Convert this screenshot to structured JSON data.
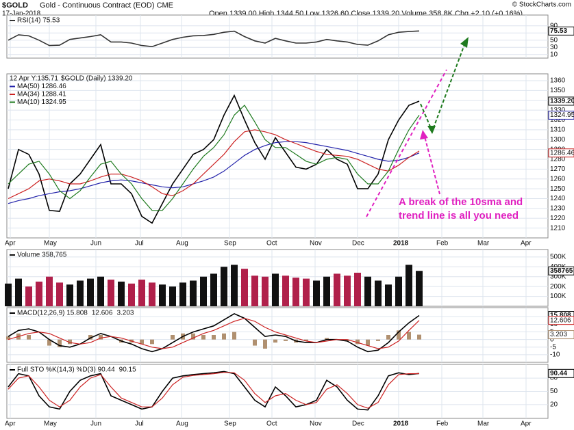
{
  "header": {
    "symbol": "$GOLD",
    "name": "Gold - Continuous Contract (EOD) CME",
    "date": "17-Jan-2018",
    "quote": "Open 1339.00 High 1344.50 Low 1326.60 Close 1339.20 Volume 358.8K Chg +2.10 (+0.16%)",
    "credit": "© StockCharts.com"
  },
  "annotations": [
    "A break of the 10sma and",
    "trend line is all you need"
  ],
  "x_axis": {
    "labels": [
      "Apr",
      "May",
      "Jun",
      "Jul",
      "Aug",
      "Sep",
      "Oct",
      "Nov",
      "Dec",
      "2018",
      "Feb",
      "Mar",
      "Apr"
    ]
  },
  "chart_data": [
    {
      "type": "line",
      "ylim": [
        0,
        120
      ],
      "yticks": [
        10,
        30,
        50,
        70,
        90
      ],
      "grid": true,
      "series": [
        {
          "name": "RSI(14) 75.53",
          "color": "#333333",
          "values": [
            50,
            65,
            62,
            50,
            35,
            36,
            52,
            56,
            60,
            65,
            45,
            45,
            42,
            35,
            32,
            42,
            52,
            58,
            62,
            63,
            66,
            72,
            75,
            60,
            48,
            42,
            55,
            48,
            42,
            42,
            45,
            52,
            48,
            45,
            38,
            36,
            48,
            65,
            72,
            74,
            75.53
          ]
        }
      ],
      "tags": [
        {
          "value": 75.53,
          "label": "75.53"
        }
      ]
    },
    {
      "type": "line",
      "ylim": [
        1200,
        1367
      ],
      "yticks": [
        1210,
        1220,
        1230,
        1240,
        1250,
        1260,
        1270,
        1280,
        1290,
        1300,
        1310,
        1320,
        1330,
        1340,
        1350,
        1360
      ],
      "grid": true,
      "tooltip": "12 Apr Y:135.71",
      "series": [
        {
          "name": "$GOLD (Daily) 1339.20",
          "color": "#000000",
          "values": [
            1250,
            1290,
            1285,
            1265,
            1228,
            1227,
            1255,
            1265,
            1280,
            1295,
            1255,
            1255,
            1245,
            1222,
            1215,
            1235,
            1255,
            1270,
            1285,
            1290,
            1300,
            1325,
            1345,
            1320,
            1297,
            1280,
            1302,
            1287,
            1272,
            1270,
            1275,
            1290,
            1280,
            1275,
            1250,
            1250,
            1265,
            1300,
            1320,
            1335,
            1339.2
          ]
        },
        {
          "name": "MA(50) 1286.46",
          "color": "#2222aa",
          "values": [
            1235,
            1238,
            1240,
            1243,
            1245,
            1247,
            1248,
            1250,
            1253,
            1256,
            1258,
            1259,
            1258,
            1256,
            1254,
            1252,
            1251,
            1252,
            1255,
            1258,
            1262,
            1268,
            1276,
            1284,
            1290,
            1294,
            1297,
            1298,
            1298,
            1297,
            1295,
            1293,
            1291,
            1289,
            1286,
            1283,
            1280,
            1278,
            1279,
            1282,
            1286.46
          ]
        },
        {
          "name": "MA(34) 1288.41",
          "color": "#cc2222",
          "values": [
            1240,
            1245,
            1250,
            1258,
            1260,
            1258,
            1255,
            1255,
            1258,
            1262,
            1265,
            1265,
            1262,
            1258,
            1252,
            1245,
            1243,
            1248,
            1255,
            1265,
            1275,
            1285,
            1298,
            1308,
            1310,
            1308,
            1305,
            1300,
            1296,
            1292,
            1288,
            1285,
            1284,
            1283,
            1280,
            1275,
            1270,
            1268,
            1274,
            1282,
            1288.41
          ]
        },
        {
          "name": "MA(10) 1324.95",
          "color": "#1e7a1e",
          "values": [
            1255,
            1265,
            1275,
            1278,
            1265,
            1248,
            1240,
            1248,
            1262,
            1275,
            1278,
            1265,
            1255,
            1240,
            1228,
            1228,
            1240,
            1255,
            1270,
            1283,
            1292,
            1305,
            1325,
            1335,
            1318,
            1300,
            1292,
            1292,
            1285,
            1278,
            1275,
            1280,
            1282,
            1280,
            1265,
            1255,
            1255,
            1268,
            1290,
            1310,
            1324.95
          ]
        }
      ],
      "tags": [
        {
          "value": 1339.2,
          "label": "1339.20"
        },
        {
          "value": 1324.95,
          "label": "1324.95"
        },
        {
          "value": 1286.46,
          "label": "1286.46"
        }
      ]
    },
    {
      "type": "bar",
      "ylim": [
        0,
        575000
      ],
      "yticks": [
        {
          "value": 100000,
          "label": "100K"
        },
        {
          "value": 200000,
          "label": "200K"
        },
        {
          "value": 300000,
          "label": "300K"
        },
        {
          "value": 400000,
          "label": "400K"
        },
        {
          "value": 500000,
          "label": "500K"
        }
      ],
      "grid": true,
      "up_color": "#111111",
      "down_color": "#b0204a",
      "series": [
        {
          "name": "Volume 358,765",
          "color": "#111111",
          "values": [
            230000,
            280000,
            200000,
            250000,
            300000,
            240000,
            220000,
            260000,
            280000,
            300000,
            270000,
            250000,
            230000,
            270000,
            240000,
            220000,
            200000,
            240000,
            260000,
            300000,
            330000,
            400000,
            420000,
            380000,
            310000,
            300000,
            330000,
            310000,
            290000,
            280000,
            260000,
            300000,
            330000,
            310000,
            340000,
            300000,
            260000,
            220000,
            300000,
            420000,
            358765
          ]
        }
      ],
      "tags": [
        {
          "value": 358765,
          "label": "358765"
        }
      ]
    },
    {
      "type": "line",
      "ylim": [
        -15,
        21
      ],
      "yticks": [
        -10,
        -5,
        0,
        5,
        10,
        15
      ],
      "grid": true,
      "series": [
        {
          "name": "MACD(12,26,9) 15.808",
          "color": "#000000",
          "values": [
            2,
            6,
            7,
            5,
            0,
            -4,
            -5,
            -3,
            1,
            4,
            2,
            -1,
            -3,
            -6,
            -8,
            -6,
            -2,
            2,
            5,
            7,
            9,
            13,
            17,
            14,
            8,
            2,
            3,
            2,
            -1,
            -2,
            -2,
            0,
            0,
            -1,
            -5,
            -8,
            -7,
            -2,
            5,
            11,
            15.808
          ]
        },
        {
          "name": "12.606",
          "color": "#cc2222",
          "values": [
            0,
            2,
            4,
            5,
            4,
            1,
            -2,
            -3,
            -2,
            1,
            2,
            1,
            -1,
            -3,
            -5,
            -6,
            -5,
            -2,
            1,
            4,
            6,
            9,
            12,
            14,
            12,
            8,
            5,
            3,
            1,
            -1,
            -2,
            -1,
            0,
            0,
            -2,
            -4,
            -6,
            -5,
            -1,
            6,
            12.606
          ]
        }
      ],
      "histogram": {
        "name": "3.203",
        "color": "#b09070",
        "values": [
          2,
          4,
          3,
          0,
          -4,
          -5,
          -3,
          0,
          3,
          3,
          0,
          -2,
          -2,
          -3,
          -3,
          0,
          3,
          4,
          4,
          3,
          3,
          4,
          5,
          0,
          -4,
          -6,
          -2,
          -1,
          -2,
          -1,
          0,
          1,
          0,
          -1,
          -3,
          -4,
          -1,
          3,
          6,
          5,
          3.203
        ]
      },
      "tags": [
        {
          "value": 15.808,
          "label": "15.808"
        },
        {
          "value": 12.606,
          "label": "12.606"
        },
        {
          "value": 3.203,
          "label": "3.203"
        }
      ]
    },
    {
      "type": "line",
      "ylim": [
        -11,
        111
      ],
      "yticks": [
        20,
        50,
        80
      ],
      "grid": true,
      "series": [
        {
          "name": "Full STO %K(14,3) %D(3) 90.44",
          "color": "#000000",
          "values": [
            60,
            90,
            85,
            40,
            15,
            10,
            50,
            75,
            85,
            90,
            40,
            30,
            20,
            10,
            15,
            50,
            80,
            85,
            88,
            90,
            92,
            95,
            90,
            60,
            30,
            15,
            60,
            40,
            15,
            20,
            30,
            75,
            60,
            30,
            10,
            8,
            40,
            85,
            92,
            88,
            90.44
          ]
        },
        {
          "name": "90.15",
          "color": "#cc2222",
          "values": [
            55,
            80,
            85,
            60,
            30,
            15,
            30,
            60,
            80,
            88,
            60,
            35,
            25,
            15,
            15,
            35,
            65,
            82,
            86,
            88,
            90,
            93,
            92,
            75,
            45,
            25,
            40,
            45,
            30,
            20,
            25,
            55,
            65,
            45,
            20,
            12,
            25,
            65,
            88,
            90,
            90.15
          ]
        }
      ],
      "tags": [
        {
          "value": 90.44,
          "label": "90.44"
        }
      ]
    }
  ]
}
